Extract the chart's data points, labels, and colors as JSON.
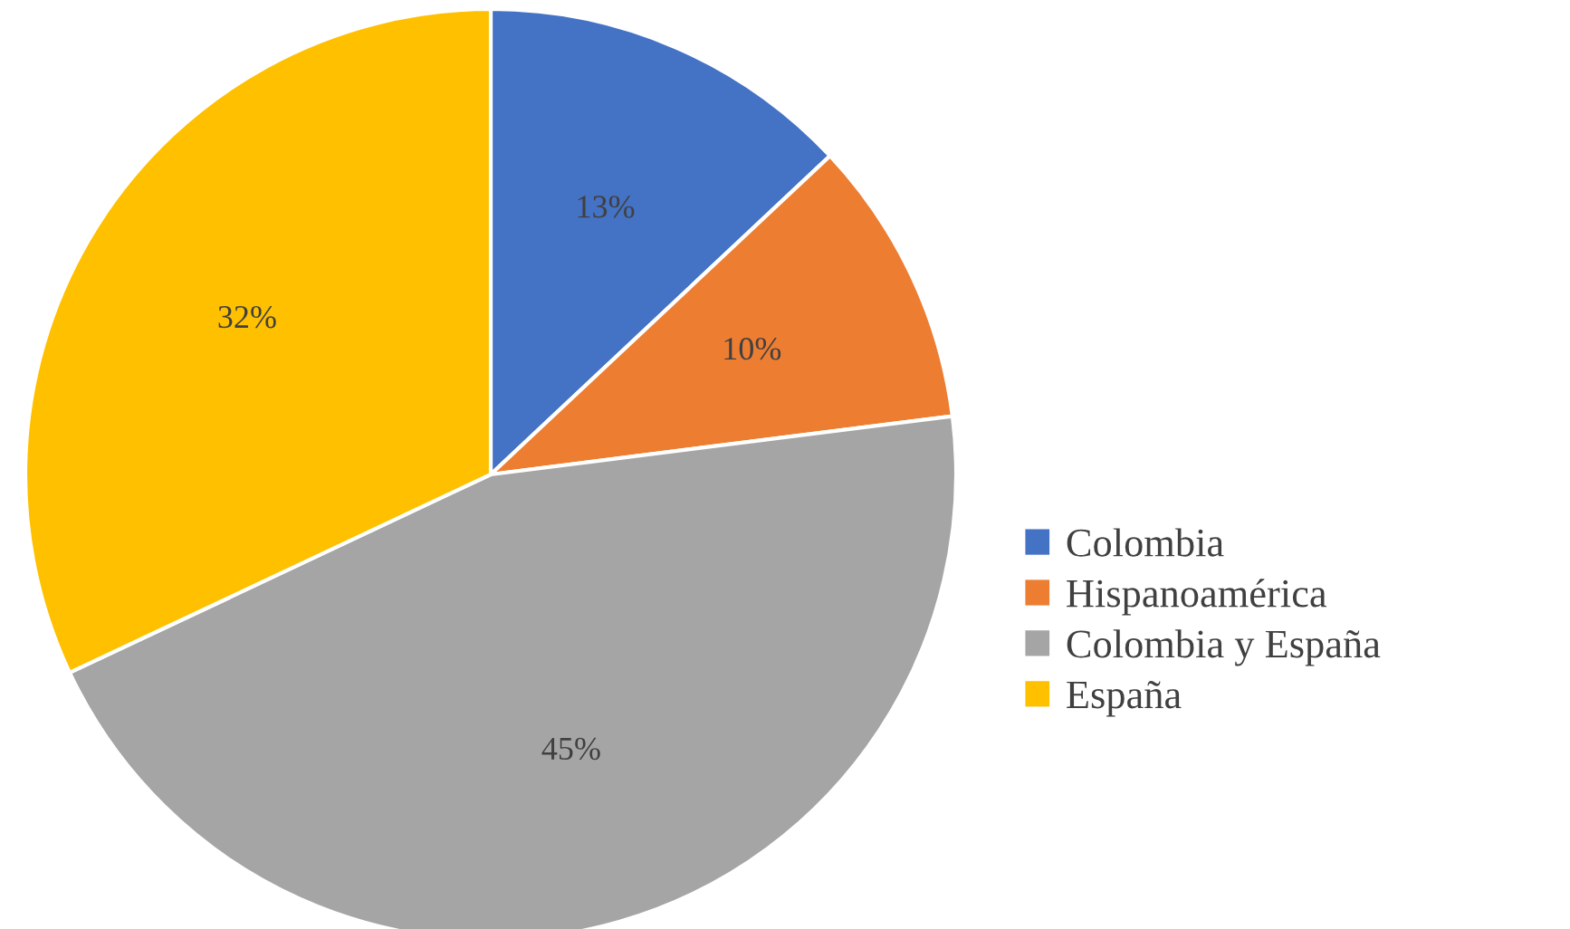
{
  "chart_data": {
    "type": "pie",
    "categories": [
      "Colombia",
      "Hispanoamérica",
      "Colombia y España",
      "España"
    ],
    "values": [
      13,
      10,
      45,
      32
    ],
    "colors": [
      "#4472c4",
      "#ed7d31",
      "#a5a5a5",
      "#ffc000"
    ],
    "value_labels": [
      "13%",
      "10%",
      "45%",
      "32%"
    ],
    "legend": "right"
  }
}
